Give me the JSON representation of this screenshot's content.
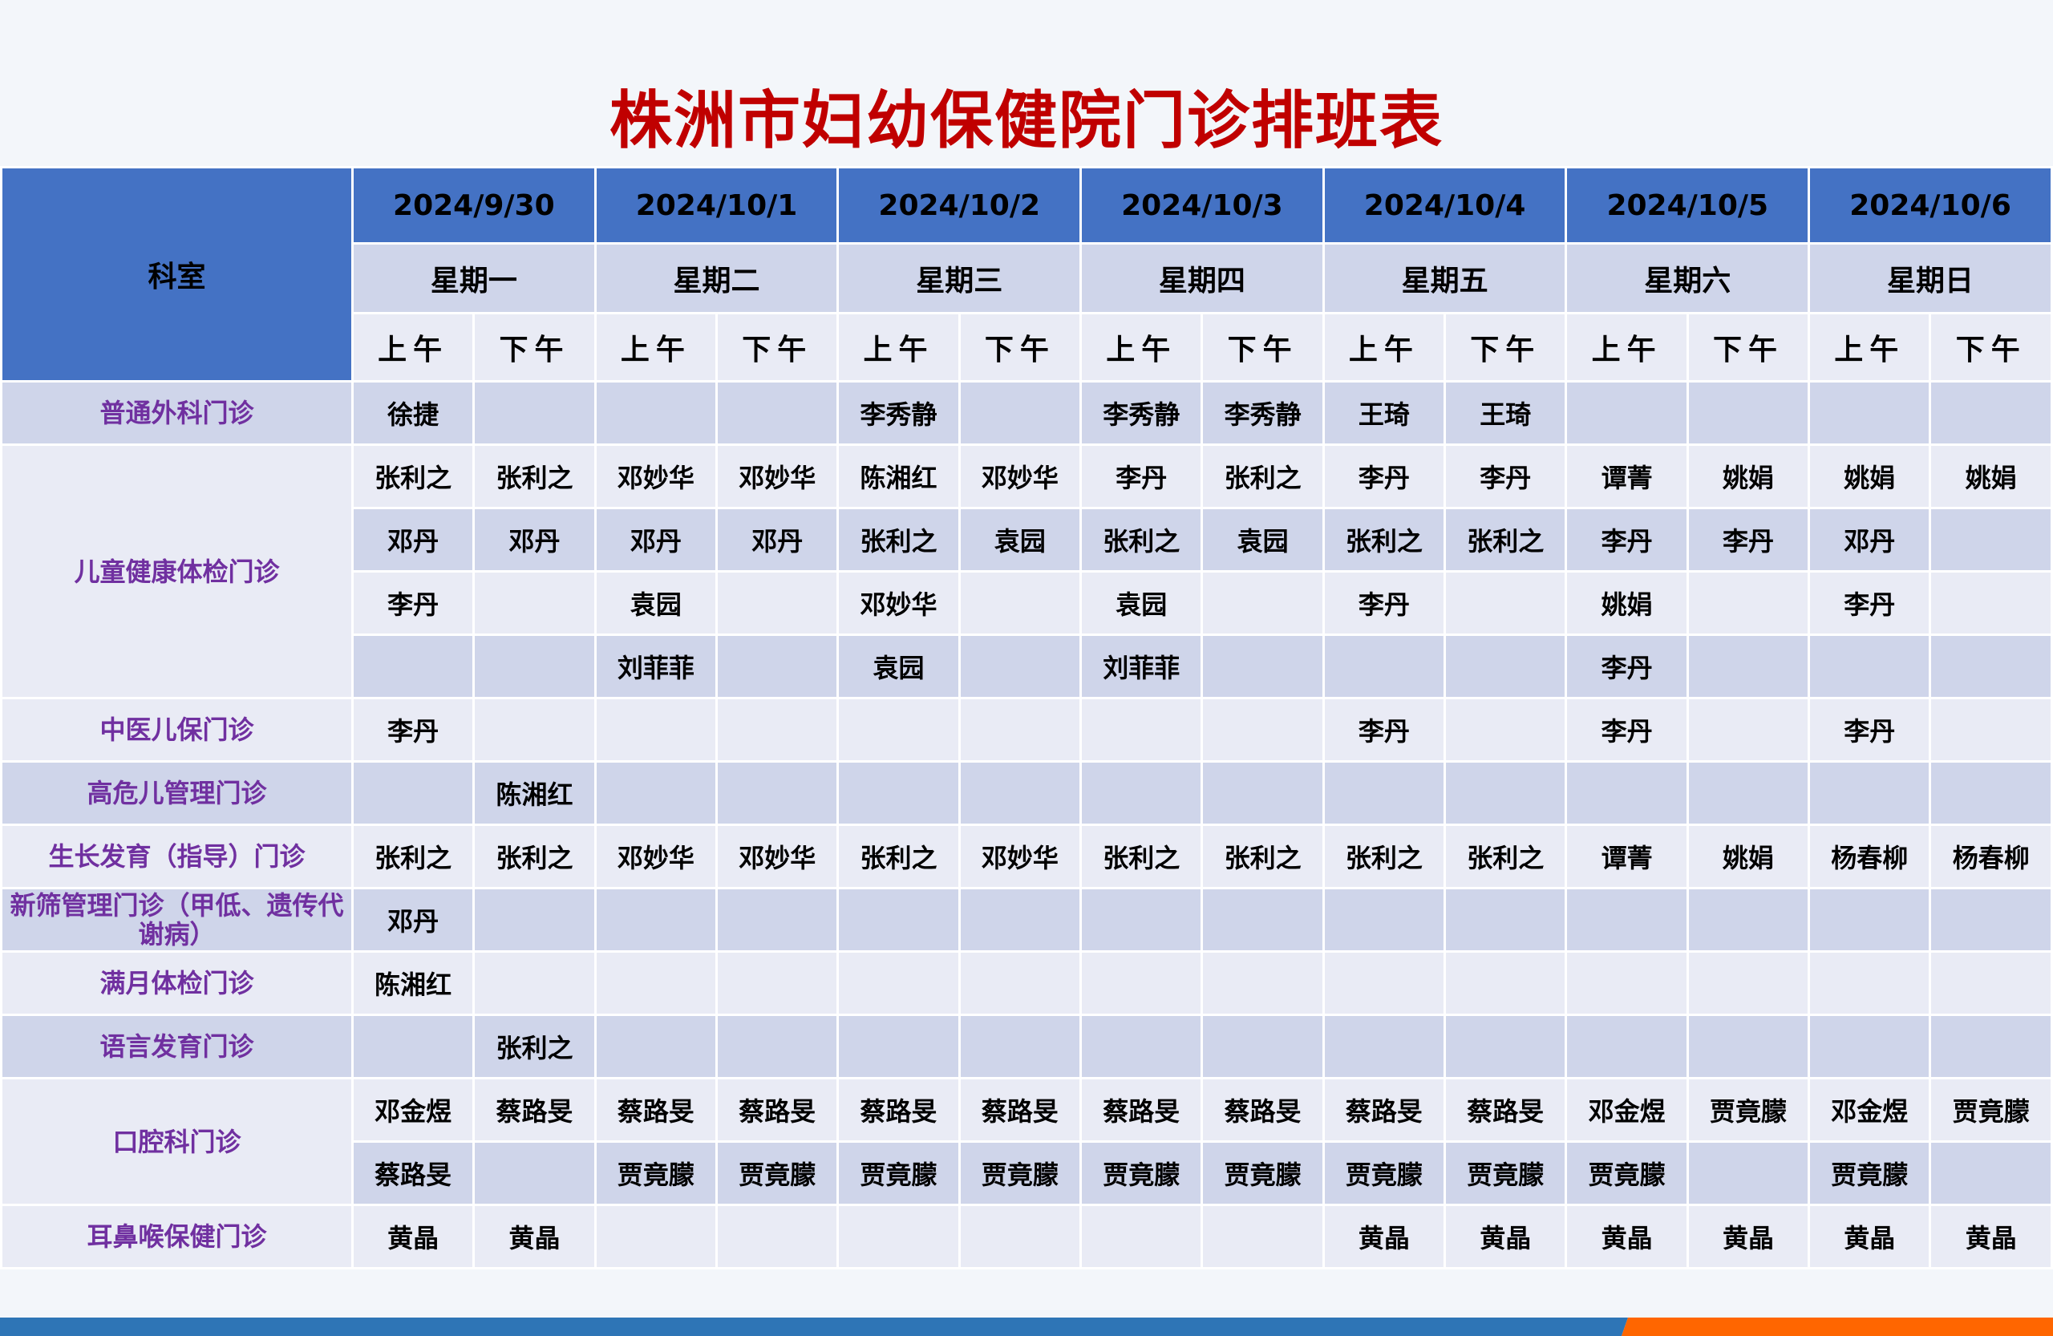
{
  "title": "株洲市妇幼保健院门诊排班表",
  "header": {
    "dept_label": "科室",
    "dates": [
      "2024/9/30",
      "2024/10/1",
      "2024/10/2",
      "2024/10/3",
      "2024/10/4",
      "2024/10/5",
      "2024/10/6"
    ],
    "weekdays": [
      "星期一",
      "星期二",
      "星期三",
      "星期四",
      "星期五",
      "星期六",
      "星期日"
    ],
    "am": "上午",
    "pm": "下午"
  },
  "departments": [
    {
      "name": "普通外科门诊",
      "rows": [
        [
          "徐捷",
          "",
          "",
          "",
          "李秀静",
          "",
          "李秀静",
          "李秀静",
          "王琦",
          "王琦",
          "",
          "",
          "",
          ""
        ]
      ]
    },
    {
      "name": "儿童健康体检门诊",
      "rows": [
        [
          "张利之",
          "张利之",
          "邓妙华",
          "邓妙华",
          "陈湘红",
          "邓妙华",
          "李丹",
          "张利之",
          "李丹",
          "李丹",
          "谭菁",
          "姚娟",
          "姚娟",
          "姚娟"
        ],
        [
          "邓丹",
          "邓丹",
          "邓丹",
          "邓丹",
          "张利之",
          "袁园",
          "张利之",
          "袁园",
          "张利之",
          "张利之",
          "李丹",
          "李丹",
          "邓丹",
          ""
        ],
        [
          "李丹",
          "",
          "袁园",
          "",
          "邓妙华",
          "",
          "袁园",
          "",
          "李丹",
          "",
          "姚娟",
          "",
          "李丹",
          ""
        ],
        [
          "",
          "",
          "刘菲菲",
          "",
          "袁园",
          "",
          "刘菲菲",
          "",
          "",
          "",
          "李丹",
          "",
          "",
          ""
        ]
      ]
    },
    {
      "name": "中医儿保门诊",
      "rows": [
        [
          "李丹",
          "",
          "",
          "",
          "",
          "",
          "",
          "",
          "李丹",
          "",
          "李丹",
          "",
          "李丹",
          ""
        ]
      ]
    },
    {
      "name": "高危儿管理门诊",
      "rows": [
        [
          "",
          "陈湘红",
          "",
          "",
          "",
          "",
          "",
          "",
          "",
          "",
          "",
          "",
          "",
          ""
        ]
      ]
    },
    {
      "name": "生长发育（指导）门诊",
      "rows": [
        [
          "张利之",
          "张利之",
          "邓妙华",
          "邓妙华",
          "张利之",
          "邓妙华",
          "张利之",
          "张利之",
          "张利之",
          "张利之",
          "谭菁",
          "姚娟",
          "杨春柳",
          "杨春柳"
        ]
      ]
    },
    {
      "name": "新筛管理门诊（甲低、遗传代谢病）",
      "rows": [
        [
          "邓丹",
          "",
          "",
          "",
          "",
          "",
          "",
          "",
          "",
          "",
          "",
          "",
          "",
          ""
        ]
      ]
    },
    {
      "name": "满月体检门诊",
      "rows": [
        [
          "陈湘红",
          "",
          "",
          "",
          "",
          "",
          "",
          "",
          "",
          "",
          "",
          "",
          "",
          ""
        ]
      ]
    },
    {
      "name": "语言发育门诊",
      "rows": [
        [
          "",
          "张利之",
          "",
          "",
          "",
          "",
          "",
          "",
          "",
          "",
          "",
          "",
          "",
          ""
        ]
      ]
    },
    {
      "name": "口腔科门诊",
      "rows": [
        [
          "邓金煜",
          "蔡路旻",
          "蔡路旻",
          "蔡路旻",
          "蔡路旻",
          "蔡路旻",
          "蔡路旻",
          "蔡路旻",
          "蔡路旻",
          "蔡路旻",
          "邓金煜",
          "贾竟朦",
          "邓金煜",
          "贾竟朦"
        ],
        [
          "蔡路旻",
          "",
          "贾竟朦",
          "贾竟朦",
          "贾竟朦",
          "贾竟朦",
          "贾竟朦",
          "贾竟朦",
          "贾竟朦",
          "贾竟朦",
          "贾竟朦",
          "",
          "贾竟朦",
          ""
        ]
      ]
    },
    {
      "name": "耳鼻喉保健门诊",
      "rows": [
        [
          "黄晶",
          "黄晶",
          "",
          "",
          "",
          "",
          "",
          "",
          "黄晶",
          "黄晶",
          "黄晶",
          "黄晶",
          "黄晶",
          "黄晶"
        ]
      ]
    }
  ],
  "colors": {
    "title": "#c00000",
    "header_blue": "#4472c4",
    "band_dark": "#cfd5ea",
    "band_light": "#e9ebf5",
    "dept_text": "#7030a0",
    "bar_blue": "#2e75b6",
    "bar_orange": "#ff6600"
  }
}
